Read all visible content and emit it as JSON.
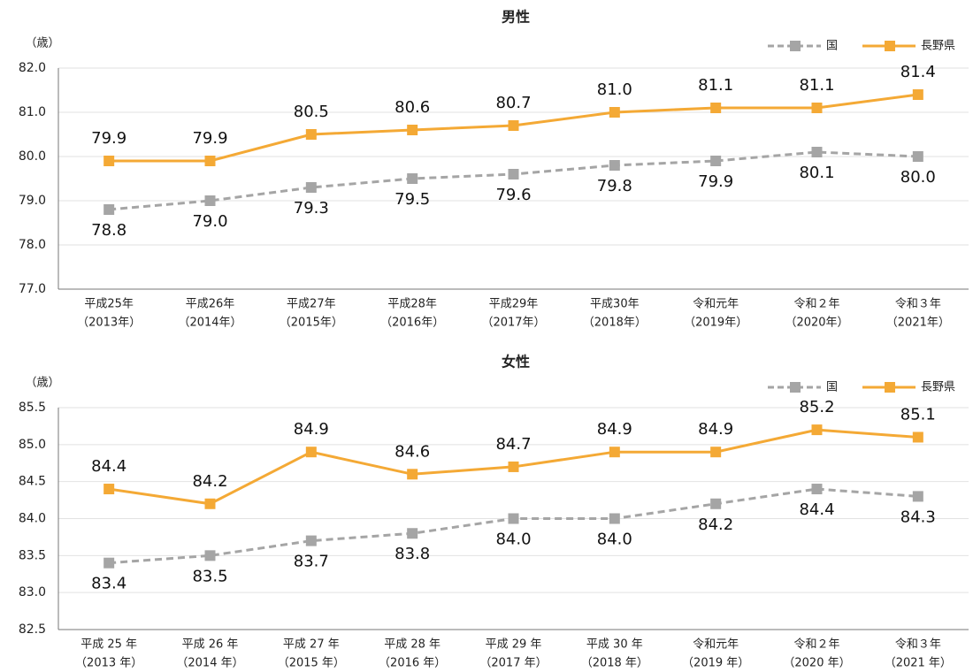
{
  "chart_data": [
    {
      "type": "line",
      "title": "男性",
      "y_label": "（歳）",
      "categories": [
        [
          "平成25年",
          "（2013年）"
        ],
        [
          "平成26年",
          "（2014年）"
        ],
        [
          "平成27年",
          "（2015年）"
        ],
        [
          "平成28年",
          "（2016年）"
        ],
        [
          "平成29年",
          "（2017年）"
        ],
        [
          "平成30年",
          "（2018年）"
        ],
        [
          "令和元年",
          "（2019年）"
        ],
        [
          "令和２年",
          "（2020年）"
        ],
        [
          "令和３年",
          "（2021年）"
        ]
      ],
      "series": [
        {
          "name": "国",
          "color": "#a5a5a5",
          "dashed": true,
          "values": [
            78.8,
            79.0,
            79.3,
            79.5,
            79.6,
            79.8,
            79.9,
            80.1,
            80.0
          ],
          "value_labels": [
            "78.8",
            "79.0",
            "79.3",
            "79.5",
            "79.6",
            "79.8",
            "79.9",
            "80.1",
            "80.0"
          ]
        },
        {
          "name": "長野県",
          "color": "#f4a935",
          "dashed": false,
          "values": [
            79.9,
            79.9,
            80.5,
            80.6,
            80.7,
            81.0,
            81.1,
            81.1,
            81.4
          ],
          "value_labels": [
            "79.9",
            "79.9",
            "80.5",
            "80.6",
            "80.7",
            "81.0",
            "81.1",
            "81.1",
            "81.4"
          ]
        }
      ],
      "ylim": [
        77,
        82
      ],
      "yticks": [
        {
          "value": 77,
          "label": "77.0"
        },
        {
          "value": 78,
          "label": "78.0"
        },
        {
          "value": 79,
          "label": "79.0"
        },
        {
          "value": 80,
          "label": "80.0"
        },
        {
          "value": 81,
          "label": "81.0"
        },
        {
          "value": 82,
          "label": "82.0"
        }
      ],
      "grid": true,
      "legend": "top-right"
    },
    {
      "type": "line",
      "title": "女性",
      "y_label": "（歳）",
      "categories": [
        [
          "平成 25 年",
          "（2013 年）"
        ],
        [
          "平成 26 年",
          "（2014 年）"
        ],
        [
          "平成 27 年",
          "（2015 年）"
        ],
        [
          "平成 28 年",
          "（2016 年）"
        ],
        [
          "平成 29 年",
          "（2017 年）"
        ],
        [
          "平成 30 年",
          "（2018 年）"
        ],
        [
          "令和元年",
          "（2019 年）"
        ],
        [
          "令和２年",
          "（2020 年）"
        ],
        [
          "令和３年",
          "（2021 年）"
        ]
      ],
      "series": [
        {
          "name": "国",
          "color": "#a5a5a5",
          "dashed": true,
          "values": [
            83.4,
            83.5,
            83.7,
            83.8,
            84.0,
            84.0,
            84.2,
            84.4,
            84.3
          ],
          "value_labels": [
            "83.4",
            "83.5",
            "83.7",
            "83.8",
            "84.0",
            "84.0",
            "84.2",
            "84.4",
            "84.3"
          ]
        },
        {
          "name": "長野県",
          "color": "#f4a935",
          "dashed": false,
          "values": [
            84.4,
            84.2,
            84.9,
            84.6,
            84.7,
            84.9,
            84.9,
            85.2,
            85.1
          ],
          "value_labels": [
            "84.4",
            "84.2",
            "84.9",
            "84.6",
            "84.7",
            "84.9",
            "84.9",
            "85.2",
            "85.1"
          ]
        }
      ],
      "ylim": [
        82.5,
        85.5
      ],
      "yticks": [
        82.5,
        {
          "value": 83,
          "label": "83.0"
        },
        83.5,
        {
          "value": 84,
          "label": "84.0"
        },
        84.5,
        {
          "value": 85,
          "label": "85.0"
        },
        85.5
      ],
      "grid": true,
      "legend": "top-right"
    }
  ]
}
